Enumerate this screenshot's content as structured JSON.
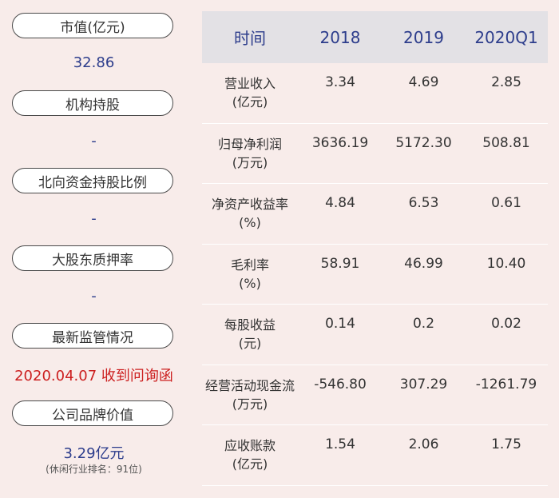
{
  "left_panel": {
    "items": [
      {
        "label": "市值(亿元)",
        "value": "32.86"
      },
      {
        "label": "机构持股",
        "value": "-"
      },
      {
        "label": "北向资金持股比例",
        "value": "-"
      },
      {
        "label": "大股东质押率",
        "value": "-"
      },
      {
        "label": "最新监管情况",
        "value": "2020.04.07 收到问询函"
      },
      {
        "label": "公司品牌价值",
        "value": "3.29亿元",
        "note": "(休闲行业排名：91位)"
      }
    ],
    "colors": {
      "value": "#2d3d8c",
      "alert": "#cc1f1f"
    }
  },
  "table": {
    "headers": [
      "时间",
      "2018",
      "2019",
      "2020Q1"
    ],
    "rows": [
      {
        "label_line1": "营业收入",
        "label_line2": "(亿元)",
        "values": [
          "3.34",
          "4.69",
          "2.85"
        ]
      },
      {
        "label_line1": "归母净利润",
        "label_line2": "(万元)",
        "values": [
          "3636.19",
          "5172.30",
          "508.81"
        ]
      },
      {
        "label_line1": "净资产收益率",
        "label_line2": "(%)",
        "values": [
          "4.84",
          "6.53",
          "0.61"
        ]
      },
      {
        "label_line1": "毛利率",
        "label_line2": "(%)",
        "values": [
          "58.91",
          "46.99",
          "10.40"
        ]
      },
      {
        "label_line1": "每股收益",
        "label_line2": "(元)",
        "values": [
          "0.14",
          "0.2",
          "0.02"
        ]
      },
      {
        "label_line1": "经营活动现金流",
        "label_line2": "(万元)",
        "values": [
          "-546.80",
          "307.29",
          "-1261.79"
        ]
      },
      {
        "label_line1": "应收账款",
        "label_line2": "(亿元)",
        "values": [
          "1.54",
          "2.06",
          "1.75"
        ]
      }
    ]
  }
}
